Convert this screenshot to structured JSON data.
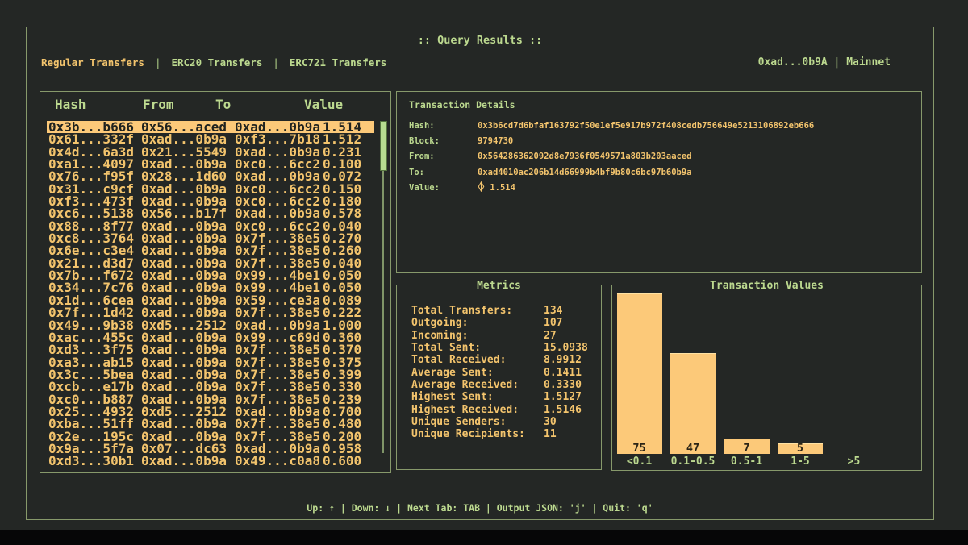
{
  "header": {
    "title": ":: Query Results ::",
    "account": "0xad...0b9A | Mainnet"
  },
  "tabs": [
    {
      "label": "Regular Transfers",
      "active": true
    },
    {
      "label": "ERC20 Transfers",
      "active": false
    },
    {
      "label": "ERC721 Transfers",
      "active": false
    }
  ],
  "table": {
    "headers": [
      "Hash",
      "From",
      "To",
      "Value"
    ],
    "selected_index": 0,
    "rows": [
      [
        "0x3b...b666",
        "0x56...aced",
        "0xad...0b9a",
        "1.514"
      ],
      [
        "0x61...332f",
        "0xad...0b9a",
        "0xf3...7b18",
        "1.512"
      ],
      [
        "0x4d...6a3d",
        "0x21...5549",
        "0xad...0b9a",
        "0.231"
      ],
      [
        "0xa1...4097",
        "0xad...0b9a",
        "0xc0...6cc2",
        "0.100"
      ],
      [
        "0x76...f95f",
        "0x28...1d60",
        "0xad...0b9a",
        "0.072"
      ],
      [
        "0x31...c9cf",
        "0xad...0b9a",
        "0xc0...6cc2",
        "0.150"
      ],
      [
        "0xf3...473f",
        "0xad...0b9a",
        "0xc0...6cc2",
        "0.180"
      ],
      [
        "0xc6...5138",
        "0x56...b17f",
        "0xad...0b9a",
        "0.578"
      ],
      [
        "0x88...8f77",
        "0xad...0b9a",
        "0xc0...6cc2",
        "0.040"
      ],
      [
        "0xc8...3764",
        "0xad...0b9a",
        "0x7f...38e5",
        "0.270"
      ],
      [
        "0x6e...c3e4",
        "0xad...0b9a",
        "0x7f...38e5",
        "0.260"
      ],
      [
        "0x21...d3d7",
        "0xad...0b9a",
        "0x7f...38e5",
        "0.040"
      ],
      [
        "0x7b...f672",
        "0xad...0b9a",
        "0x99...4be1",
        "0.050"
      ],
      [
        "0x34...7c76",
        "0xad...0b9a",
        "0x99...4be1",
        "0.050"
      ],
      [
        "0x1d...6cea",
        "0xad...0b9a",
        "0x59...ce3a",
        "0.089"
      ],
      [
        "0x7f...1d42",
        "0xad...0b9a",
        "0x7f...38e5",
        "0.222"
      ],
      [
        "0x49...9b38",
        "0xd5...2512",
        "0xad...0b9a",
        "1.000"
      ],
      [
        "0xac...455c",
        "0xad...0b9a",
        "0x99...c69d",
        "0.360"
      ],
      [
        "0xd3...3f75",
        "0xad...0b9a",
        "0x7f...38e5",
        "0.370"
      ],
      [
        "0xa3...ab15",
        "0xad...0b9a",
        "0x7f...38e5",
        "0.375"
      ],
      [
        "0x3c...5bea",
        "0xad...0b9a",
        "0x7f...38e5",
        "0.399"
      ],
      [
        "0xcb...e17b",
        "0xad...0b9a",
        "0x7f...38e5",
        "0.330"
      ],
      [
        "0xc0...b887",
        "0xad...0b9a",
        "0x7f...38e5",
        "0.239"
      ],
      [
        "0x25...4932",
        "0xd5...2512",
        "0xad...0b9a",
        "0.700"
      ],
      [
        "0xba...51ff",
        "0xad...0b9a",
        "0x7f...38e5",
        "0.480"
      ],
      [
        "0x2e...195c",
        "0xad...0b9a",
        "0x7f...38e5",
        "0.200"
      ],
      [
        "0x9a...5f7a",
        "0x07...dc63",
        "0xad...0b9a",
        "0.958"
      ],
      [
        "0xd3...30b1",
        "0xad...0b9a",
        "0x49...c0a8",
        "0.600"
      ]
    ]
  },
  "details": {
    "title": "Transaction Details",
    "fields": [
      {
        "label": "Hash:",
        "value": "0x3b6cd7d6bfaf163792f50e1ef5e917b972f408cedb756649e5213106892eb666",
        "eth_symbol": false
      },
      {
        "label": "Block:",
        "value": "9794730",
        "eth_symbol": false
      },
      {
        "label": "From:",
        "value": "0x564286362092d8e7936f0549571a803b203aaced",
        "eth_symbol": false
      },
      {
        "label": "To:",
        "value": "0xad4010ac206b14d66999b4bf9b80c6bc97b60b9a",
        "eth_symbol": false
      },
      {
        "label": "Value:",
        "value": "1.514",
        "eth_symbol": true
      }
    ]
  },
  "metrics": {
    "title": "Metrics",
    "items": [
      {
        "label": "Total Transfers:",
        "value": "134"
      },
      {
        "label": "Outgoing:",
        "value": "107"
      },
      {
        "label": "Incoming:",
        "value": "27"
      },
      {
        "label": "Total Sent:",
        "value": "15.0938"
      },
      {
        "label": "Total Received:",
        "value": "8.9912"
      },
      {
        "label": "Average Sent:",
        "value": "0.1411"
      },
      {
        "label": "Average Received:",
        "value": "0.3330"
      },
      {
        "label": "Highest Sent:",
        "value": "1.5127"
      },
      {
        "label": "Highest Received:",
        "value": "1.5146"
      },
      {
        "label": "Unique Senders:",
        "value": "30"
      },
      {
        "label": "Unique Recipients:",
        "value": "11"
      }
    ]
  },
  "chart_data": {
    "type": "bar",
    "title": "Transaction Values",
    "categories": [
      "<0.1",
      "0.1-0.5",
      "0.5-1",
      "1-5",
      ">5"
    ],
    "values": [
      75,
      47,
      7,
      5,
      0
    ],
    "xlabel": "",
    "ylabel": "",
    "ylim": [
      0,
      80
    ],
    "grid": false,
    "legend_position": "none",
    "bar_color": "#fcc979",
    "bar_count_labels": [
      "75",
      "47",
      "7",
      "5",
      ""
    ]
  },
  "help": {
    "text": "Up: ↑ | Down: ↓ | Next Tab: TAB | Output JSON: 'j' | Quit: 'q'"
  },
  "palette": {
    "background": "#242725",
    "border_green": "#87996b",
    "text_green": "#bcd98f",
    "text_amber": "#f3c46d",
    "highlight_bg": "#fcc979",
    "highlight_text": "#20231f",
    "scrollbar_thumb": "#b7dc90"
  }
}
